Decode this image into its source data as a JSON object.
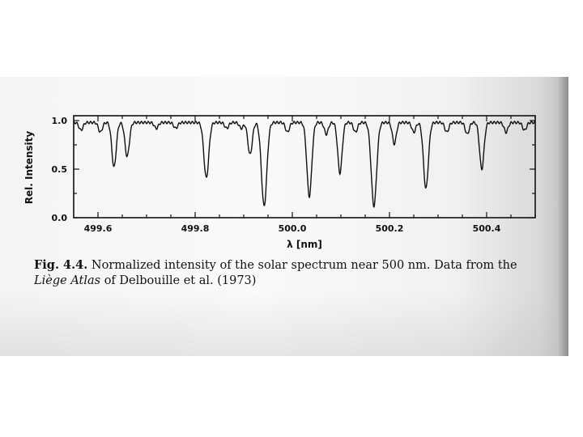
{
  "chart_data": {
    "type": "line",
    "xlabel": "λ [nm]",
    "ylabel": "Rel. Intensity",
    "xlim": [
      499.55,
      500.5
    ],
    "ylim": [
      0.0,
      1.05
    ],
    "x_ticks": [
      499.6,
      499.8,
      500.0,
      500.2,
      500.4
    ],
    "x_tick_labels": [
      "499.6",
      "499.8",
      "500.0",
      "500.2",
      "500.4"
    ],
    "y_ticks": [
      0.0,
      0.5,
      1.0
    ],
    "y_tick_labels": [
      "0.0",
      "0.5",
      "1.0"
    ],
    "grid": false,
    "continuum": 0.98,
    "absorption_lines": [
      {
        "center": 499.565,
        "depth": 0.08,
        "width": 0.004
      },
      {
        "center": 499.605,
        "depth": 0.1,
        "width": 0.004
      },
      {
        "center": 499.633,
        "depth": 0.46,
        "width": 0.0045
      },
      {
        "center": 499.66,
        "depth": 0.35,
        "width": 0.0045
      },
      {
        "center": 499.72,
        "depth": 0.06,
        "width": 0.004
      },
      {
        "center": 499.76,
        "depth": 0.06,
        "width": 0.004
      },
      {
        "center": 499.823,
        "depth": 0.57,
        "width": 0.005
      },
      {
        "center": 499.865,
        "depth": 0.06,
        "width": 0.004
      },
      {
        "center": 499.895,
        "depth": 0.06,
        "width": 0.004
      },
      {
        "center": 499.913,
        "depth": 0.33,
        "width": 0.0045
      },
      {
        "center": 499.942,
        "depth": 0.86,
        "width": 0.0055
      },
      {
        "center": 499.99,
        "depth": 0.1,
        "width": 0.004
      },
      {
        "center": 500.035,
        "depth": 0.76,
        "width": 0.005
      },
      {
        "center": 500.07,
        "depth": 0.12,
        "width": 0.004
      },
      {
        "center": 500.098,
        "depth": 0.52,
        "width": 0.0045
      },
      {
        "center": 500.13,
        "depth": 0.1,
        "width": 0.004
      },
      {
        "center": 500.168,
        "depth": 0.86,
        "width": 0.0055
      },
      {
        "center": 500.21,
        "depth": 0.22,
        "width": 0.004
      },
      {
        "center": 500.25,
        "depth": 0.1,
        "width": 0.004
      },
      {
        "center": 500.275,
        "depth": 0.68,
        "width": 0.005
      },
      {
        "center": 500.318,
        "depth": 0.1,
        "width": 0.004
      },
      {
        "center": 500.36,
        "depth": 0.12,
        "width": 0.004
      },
      {
        "center": 500.39,
        "depth": 0.48,
        "width": 0.0045
      },
      {
        "center": 500.44,
        "depth": 0.1,
        "width": 0.004
      },
      {
        "center": 500.478,
        "depth": 0.08,
        "width": 0.004
      }
    ]
  },
  "caption": {
    "label": "Fig. 4.4.",
    "text_1": " Normalized intensity of the solar spectrum near 500 nm. Data from the",
    "atlas_name": "Liège Atlas",
    "text_2": " of Delbouille et al. (1973)"
  }
}
